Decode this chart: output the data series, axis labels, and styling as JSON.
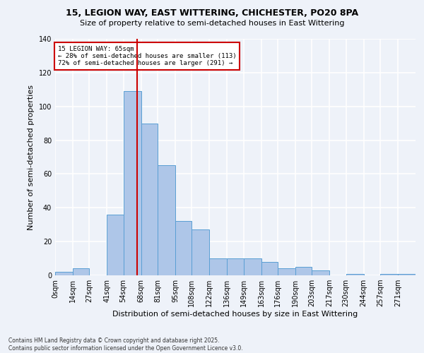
{
  "title1": "15, LEGION WAY, EAST WITTERING, CHICHESTER, PO20 8PA",
  "title2": "Size of property relative to semi-detached houses in East Wittering",
  "xlabel": "Distribution of semi-detached houses by size in East Wittering",
  "ylabel": "Number of semi-detached properties",
  "footnote1": "Contains HM Land Registry data © Crown copyright and database right 2025.",
  "footnote2": "Contains public sector information licensed under the Open Government Licence v3.0.",
  "bin_labels": [
    "0sqm",
    "14sqm",
    "27sqm",
    "41sqm",
    "54sqm",
    "68sqm",
    "81sqm",
    "95sqm",
    "108sqm",
    "122sqm",
    "136sqm",
    "149sqm",
    "163sqm",
    "176sqm",
    "190sqm",
    "203sqm",
    "217sqm",
    "230sqm",
    "244sqm",
    "257sqm",
    "271sqm"
  ],
  "bar_values": [
    2,
    4,
    0,
    36,
    109,
    90,
    65,
    32,
    27,
    10,
    10,
    10,
    8,
    4,
    5,
    3,
    0,
    1,
    0,
    1,
    1
  ],
  "bin_edges": [
    0,
    14,
    27,
    41,
    54,
    68,
    81,
    95,
    108,
    122,
    136,
    149,
    163,
    176,
    190,
    203,
    217,
    230,
    244,
    257,
    271,
    285
  ],
  "bar_color": "#aec6e8",
  "bar_edge_color": "#5a9fd4",
  "vline_x": 65,
  "vline_color": "#cc0000",
  "annotation_title": "15 LEGION WAY: 65sqm",
  "annotation_line1": "← 28% of semi-detached houses are smaller (113)",
  "annotation_line2": "72% of semi-detached houses are larger (291) →",
  "annotation_box_color": "#ffffff",
  "annotation_box_edge": "#cc0000",
  "ylim": [
    0,
    140
  ],
  "yticks": [
    0,
    20,
    40,
    60,
    80,
    100,
    120,
    140
  ],
  "background_color": "#eef2f9",
  "grid_color": "#ffffff",
  "title1_fontsize": 9,
  "title2_fontsize": 8,
  "ylabel_fontsize": 8,
  "xlabel_fontsize": 8,
  "tick_fontsize": 7,
  "footnote_fontsize": 5.5
}
